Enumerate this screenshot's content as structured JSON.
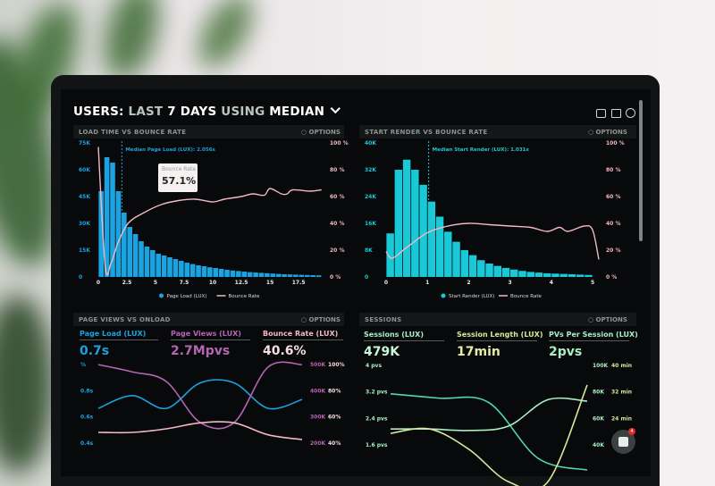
{
  "header": {
    "title_a": "USERS:",
    "title_b": "LAST",
    "title_c": "7 DAYS",
    "title_d": "USING",
    "title_e": "MEDIAN",
    "chevron": "chevron-down-icon",
    "icons": [
      "monitor-icon",
      "image-icon",
      "help-icon"
    ]
  },
  "options_label": "OPTIONS",
  "colors": {
    "blue": "#1aa3e0",
    "cyan": "#19c9d8",
    "pink": "#f1b9c4",
    "purple": "#b565b3",
    "green": "#a9efc4",
    "teal": "#52d8b2",
    "yellow": "#d9e79a"
  },
  "tooltip": {
    "title": "Bounce Rate",
    "value": "57.1%"
  },
  "chat": {
    "badge": "4"
  },
  "chart_data": [
    {
      "type": "bar",
      "title": "LOAD TIME VS BOUNCE RATE",
      "annotation": "Median Page Load (LUX): 2.056s",
      "median": 2.056,
      "x_ticks": [
        "0",
        "2.5",
        "5",
        "7.5",
        "10",
        "12.5",
        "15",
        "17.5"
      ],
      "y_ticks": [
        "75K",
        "60K",
        "45K",
        "30K",
        "15K",
        "0"
      ],
      "y2_ticks": [
        "100 %",
        "80 %",
        "60 %",
        "40 %",
        "20 %",
        "0 %"
      ],
      "xlim": [
        0,
        19.6
      ],
      "ylim": [
        0,
        75000
      ],
      "y2lim": [
        0,
        100
      ],
      "bin_width": 0.5,
      "bars": [
        48000,
        67000,
        64000,
        48000,
        36000,
        28000,
        24000,
        20000,
        17000,
        15000,
        13000,
        12000,
        11000,
        10000,
        9000,
        8000,
        7200,
        6500,
        6000,
        5400,
        5000,
        4500,
        4000,
        3600,
        3300,
        3000,
        2700,
        2500,
        2300,
        2100,
        1900,
        1700,
        1500,
        1400,
        1300,
        1200,
        1100,
        1000,
        900
      ],
      "line": {
        "name": "Bounce Rate",
        "points": [
          [
            0,
            97
          ],
          [
            0.6,
            8
          ],
          [
            1.1,
            10
          ],
          [
            1.7,
            25
          ],
          [
            2.6,
            40
          ],
          [
            4,
            48
          ],
          [
            5.5,
            54
          ],
          [
            7,
            57
          ],
          [
            8.5,
            58
          ],
          [
            10,
            56
          ],
          [
            11,
            58
          ],
          [
            12.5,
            60
          ],
          [
            13.5,
            62
          ],
          [
            14.5,
            61
          ],
          [
            15,
            66
          ],
          [
            16,
            62
          ],
          [
            16.5,
            62
          ],
          [
            17,
            65
          ],
          [
            18.5,
            64
          ],
          [
            19.5,
            65
          ]
        ]
      },
      "legend": [
        "Page Load (LUX)",
        "Bounce Rate"
      ]
    },
    {
      "type": "bar",
      "title": "START RENDER VS BOUNCE RATE",
      "annotation": "Median Start Render (LUX): 1.031s",
      "median": 1.031,
      "x_ticks": [
        "0",
        "1",
        "2",
        "3",
        "4",
        "5"
      ],
      "y_ticks": [
        "40K",
        "32K",
        "24K",
        "16K",
        "8K",
        "0"
      ],
      "y2_ticks": [
        "100 %",
        "80 %",
        "60 %",
        "40 %",
        "20 %",
        "0 %"
      ],
      "xlim": [
        0,
        5.15
      ],
      "ylim": [
        0,
        40000
      ],
      "y2lim": [
        0,
        100
      ],
      "bin_width": 0.2,
      "bars": [
        13000,
        32000,
        35000,
        32000,
        27500,
        22500,
        18000,
        13500,
        10500,
        8000,
        6500,
        5000,
        4000,
        3300,
        2700,
        2200,
        1800,
        1500,
        1300,
        1100,
        1000,
        900,
        800,
        700,
        600
      ],
      "line": {
        "name": "Bounce Rate",
        "points": [
          [
            0,
            19
          ],
          [
            0.15,
            14
          ],
          [
            0.5,
            22
          ],
          [
            1,
            33
          ],
          [
            1.5,
            38
          ],
          [
            2,
            40
          ],
          [
            2.5,
            39
          ],
          [
            3,
            38
          ],
          [
            3.5,
            37
          ],
          [
            3.9,
            34
          ],
          [
            4.2,
            37
          ],
          [
            4.4,
            34
          ],
          [
            4.8,
            38
          ],
          [
            5,
            35
          ],
          [
            5.15,
            13
          ]
        ]
      },
      "legend": [
        "Start Render (LUX)",
        "Bounce Rate"
      ]
    },
    {
      "type": "line",
      "title": "PAGE VIEWS VS ONLOAD",
      "metrics": [
        {
          "label": "Page Load (LUX)",
          "value": "0.7s"
        },
        {
          "label": "Page Views (LUX)",
          "value": "2.7Mpvs"
        },
        {
          "label": "Bounce Rate (LUX)",
          "value": "40.6%"
        }
      ],
      "y_ticks": [
        "%",
        "0.8s",
        "0.6s",
        "0.4s"
      ],
      "y2_ticks": [
        "500K",
        "400K",
        "300K",
        "200K"
      ],
      "y3_ticks": [
        "100%",
        "80%",
        "60%",
        "40%"
      ],
      "series": [
        {
          "name": "Page Load (LUX)",
          "axis": [
            0.3,
            1.0
          ],
          "values": [
            0.6,
            0.7,
            0.6,
            0.8,
            0.8,
            0.6,
            0.67
          ]
        },
        {
          "name": "Page Views (LUX)",
          "axis": [
            150000,
            520000
          ],
          "values": [
            490000,
            460000,
            420000,
            250000,
            250000,
            480000,
            490000
          ]
        },
        {
          "name": "Bounce Rate (LUX)",
          "axis": [
            30,
            105
          ],
          "values": [
            42,
            42,
            45,
            50,
            50,
            40,
            36
          ]
        }
      ]
    },
    {
      "type": "line",
      "title": "SESSIONS",
      "metrics": [
        {
          "label": "Sessions (LUX)",
          "value": "479K"
        },
        {
          "label": "Session Length (LUX)",
          "value": "17min"
        },
        {
          "label": "PVs Per Session (LUX)",
          "value": "2pvs"
        }
      ],
      "y_ticks": [
        "4 pvs",
        "3.2 pvs",
        "2.4 pvs",
        "1.6 pvs"
      ],
      "y2_ticks": [
        "100K",
        "80K",
        "60K",
        "40K"
      ],
      "y3_ticks": [
        "40 min",
        "32 min",
        "24 min"
      ],
      "series": [
        {
          "name": "Sessions (LUX)",
          "axis": [
            1.0,
            4.2
          ],
          "values": [
            3.2,
            3.05,
            2.9,
            1.0,
            0.6
          ]
        },
        {
          "name": "PVs Per Session (LUX)",
          "axis": [
            1.0,
            4.2
          ],
          "values": [
            2.0,
            2.0,
            1.95,
            2.1,
            3.0,
            2.95
          ]
        },
        {
          "name": "Session Length (LUX)",
          "axis": [
            1.0,
            4.2
          ],
          "values": [
            1.85,
            2.0,
            1.3,
            0.2,
            0.2,
            3.5
          ]
        }
      ]
    }
  ]
}
